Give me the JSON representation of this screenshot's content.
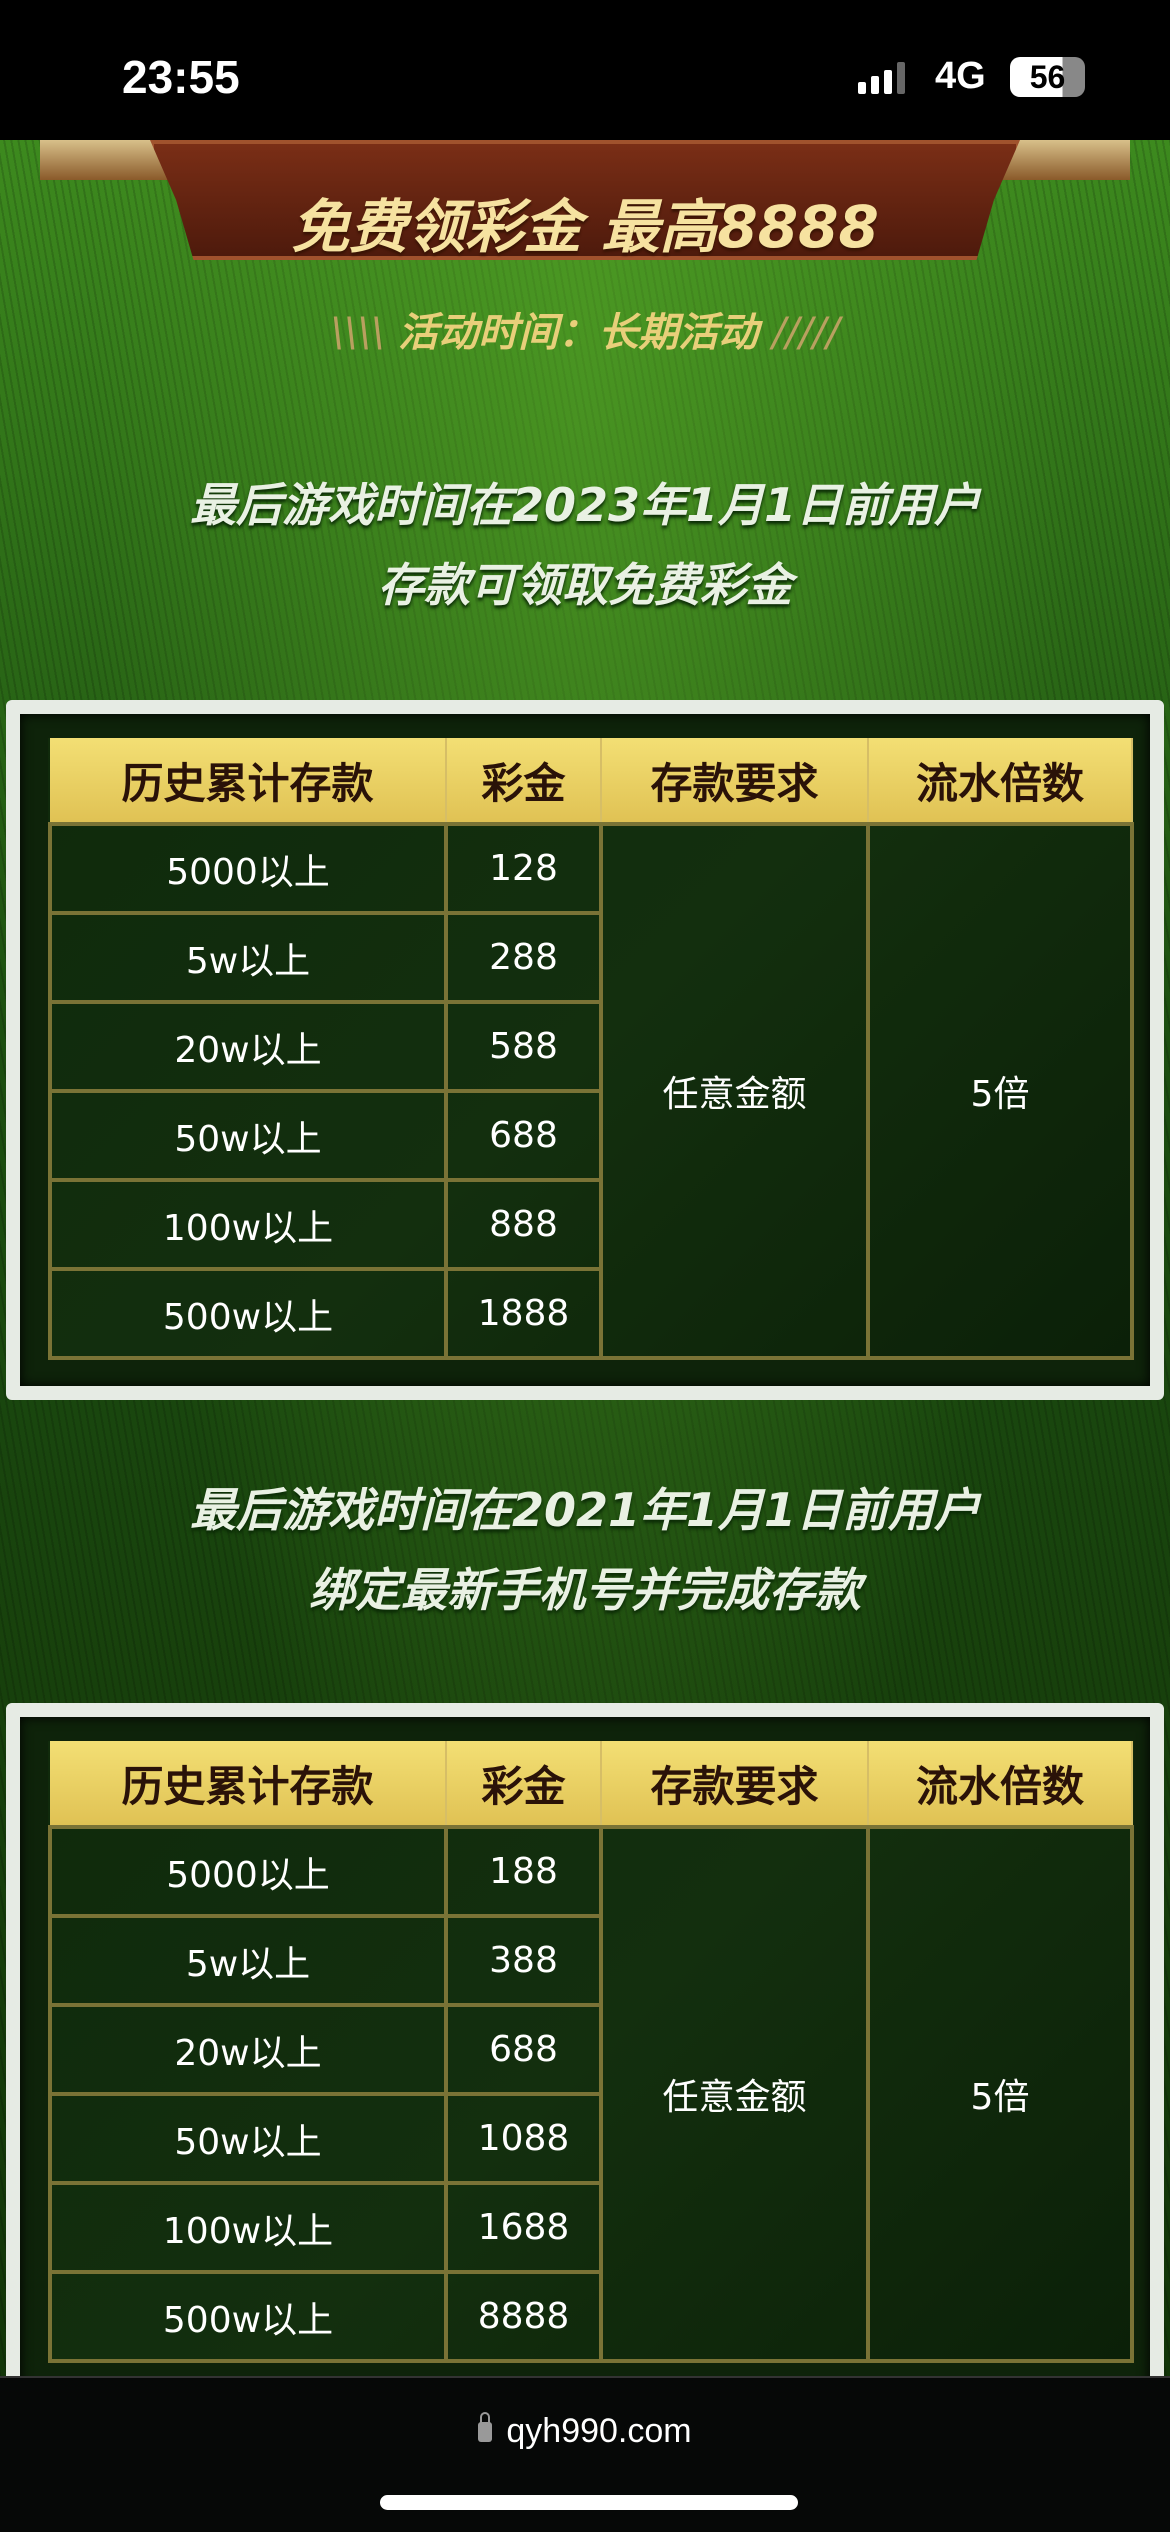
{
  "status_bar": {
    "time": "23:55",
    "network": "4G",
    "battery": "56"
  },
  "banner": {
    "promo": "免费领彩金  最高8888",
    "period_prefix": "\\\\\\\\",
    "period": "活动时间：长期活动",
    "period_suffix": "/////"
  },
  "sections": [
    {
      "heading_line1": "最后游戏时间在2023年1月1日前用户",
      "heading_line2": "存款可领取免费彩金",
      "table": {
        "headers": [
          "历史累计存款",
          "彩金",
          "存款要求",
          "流水倍数"
        ],
        "rows": [
          [
            "5000以上",
            "128"
          ],
          [
            "5w以上",
            "288"
          ],
          [
            "20w以上",
            "588"
          ],
          [
            "50w以上",
            "688"
          ],
          [
            "100w以上",
            "888"
          ],
          [
            "500w以上",
            "1888"
          ]
        ],
        "requirement": "任意金额",
        "multiplier": "5倍"
      }
    },
    {
      "heading_line1": "最后游戏时间在2021年1月1日前用户",
      "heading_line2": "绑定最新手机号并完成存款",
      "table": {
        "headers": [
          "历史累计存款",
          "彩金",
          "存款要求",
          "流水倍数"
        ],
        "rows": [
          [
            "5000以上",
            "188"
          ],
          [
            "5w以上",
            "388"
          ],
          [
            "20w以上",
            "688"
          ],
          [
            "50w以上",
            "1088"
          ],
          [
            "100w以上",
            "1688"
          ],
          [
            "500w以上",
            "8888"
          ]
        ],
        "requirement": "任意金额",
        "multiplier": "5倍"
      }
    }
  ],
  "browser": {
    "url": "qyh990.com"
  }
}
